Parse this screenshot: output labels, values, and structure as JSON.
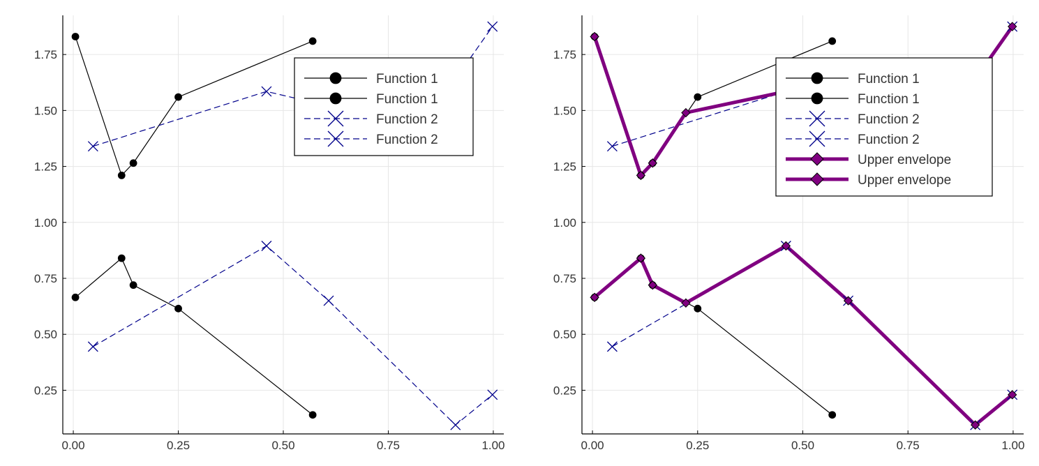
{
  "chart_data": [
    {
      "type": "line",
      "xlim": [
        -0.025,
        1.025
      ],
      "ylim": [
        0.055,
        1.925
      ],
      "xticks": [
        0.0,
        0.25,
        0.5,
        0.75,
        1.0
      ],
      "xtick_labels": [
        "0.00",
        "0.25",
        "0.50",
        "0.75",
        "1.00"
      ],
      "yticks": [
        0.25,
        0.5,
        0.75,
        1.0,
        1.25,
        1.5,
        1.75
      ],
      "ytick_labels": [
        "0.25",
        "0.50",
        "0.75",
        "1.00",
        "1.25",
        "1.50",
        "1.75"
      ],
      "grid": true,
      "legend_position": "top-right",
      "series": [
        {
          "name": "Function 1",
          "style": "solid",
          "marker": "circle",
          "color": "#000000",
          "x": [
            0.005,
            0.115,
            0.143,
            0.25,
            0.57
          ],
          "y": [
            1.83,
            1.21,
            1.265,
            1.56,
            1.81
          ]
        },
        {
          "name": "Function 1",
          "style": "solid",
          "marker": "circle",
          "color": "#000000",
          "x": [
            0.005,
            0.115,
            0.143,
            0.25,
            0.57
          ],
          "y": [
            0.665,
            0.84,
            0.72,
            0.615,
            0.14
          ]
        },
        {
          "name": "Function 2",
          "style": "dashed",
          "marker": "cross",
          "color": "#00008b",
          "x": [
            0.047,
            0.46,
            0.608,
            0.91,
            0.998
          ],
          "y": [
            1.34,
            1.585,
            1.52,
            1.64,
            1.875
          ]
        },
        {
          "name": "Function 2",
          "style": "dashed",
          "marker": "cross",
          "color": "#00008b",
          "x": [
            0.047,
            0.46,
            0.608,
            0.91,
            0.998
          ],
          "y": [
            0.445,
            0.895,
            0.65,
            0.095,
            0.23
          ]
        }
      ]
    },
    {
      "type": "line",
      "xlim": [
        -0.025,
        1.025
      ],
      "ylim": [
        0.055,
        1.925
      ],
      "xticks": [
        0.0,
        0.25,
        0.5,
        0.75,
        1.0
      ],
      "xtick_labels": [
        "0.00",
        "0.25",
        "0.50",
        "0.75",
        "1.00"
      ],
      "yticks": [
        0.25,
        0.5,
        0.75,
        1.0,
        1.25,
        1.5,
        1.75
      ],
      "ytick_labels": [
        "0.25",
        "0.50",
        "0.75",
        "1.00",
        "1.25",
        "1.50",
        "1.75"
      ],
      "grid": true,
      "legend_position": "top-right",
      "series": [
        {
          "name": "Function 1",
          "style": "solid",
          "marker": "circle",
          "color": "#000000",
          "x": [
            0.005,
            0.115,
            0.143,
            0.25,
            0.57
          ],
          "y": [
            1.83,
            1.21,
            1.265,
            1.56,
            1.81
          ]
        },
        {
          "name": "Function 1",
          "style": "solid",
          "marker": "circle",
          "color": "#000000",
          "x": [
            0.005,
            0.115,
            0.143,
            0.25,
            0.57
          ],
          "y": [
            0.665,
            0.84,
            0.72,
            0.615,
            0.14
          ]
        },
        {
          "name": "Function 2",
          "style": "dashed",
          "marker": "cross",
          "color": "#00008b",
          "x": [
            0.047,
            0.46,
            0.608,
            0.91,
            0.998
          ],
          "y": [
            1.34,
            1.585,
            1.52,
            1.64,
            1.875
          ]
        },
        {
          "name": "Function 2",
          "style": "dashed",
          "marker": "cross",
          "color": "#00008b",
          "x": [
            0.047,
            0.46,
            0.608,
            0.91,
            0.998
          ],
          "y": [
            0.445,
            0.895,
            0.65,
            0.095,
            0.23
          ]
        },
        {
          "name": "Upper envelope",
          "style": "thick",
          "marker": "diamond",
          "color": "#800080",
          "x": [
            0.005,
            0.115,
            0.143,
            0.222,
            0.46,
            0.608,
            0.91,
            0.998
          ],
          "y": [
            1.83,
            1.21,
            1.265,
            1.49,
            1.585,
            1.52,
            1.64,
            1.875
          ]
        },
        {
          "name": "Upper envelope",
          "style": "thick",
          "marker": "diamond",
          "color": "#800080",
          "x": [
            0.005,
            0.115,
            0.143,
            0.222,
            0.46,
            0.608,
            0.91,
            0.998
          ],
          "y": [
            0.665,
            0.84,
            0.72,
            0.64,
            0.895,
            0.65,
            0.095,
            0.23
          ]
        }
      ]
    }
  ]
}
